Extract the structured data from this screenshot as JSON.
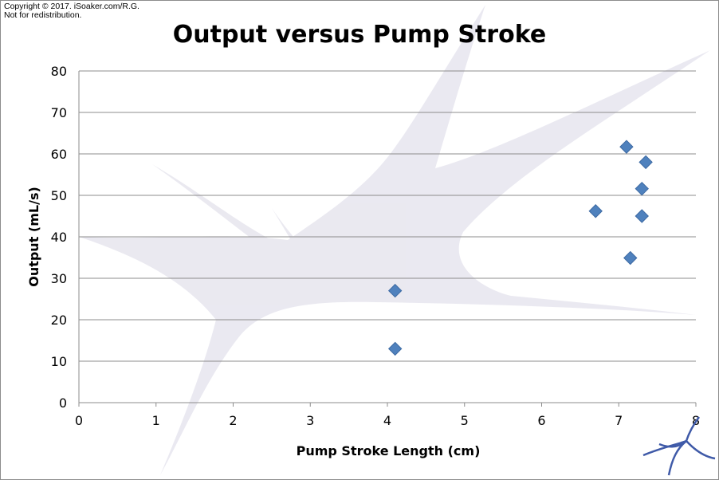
{
  "copyright": {
    "line1": "Copyright © 2017. iSoaker.com/R.G.",
    "line2": "Not for redistribution."
  },
  "watermark_icon": "isoaker-star-logo",
  "chart_data": {
    "type": "scatter",
    "title": "Output versus Pump Stroke",
    "xlabel": "Pump Stroke Length (cm)",
    "ylabel": "Output (mL/s)",
    "xlim": [
      0,
      8
    ],
    "ylim": [
      0,
      80
    ],
    "xticks": [
      0,
      1,
      2,
      3,
      4,
      5,
      6,
      7,
      8
    ],
    "yticks": [
      0,
      10,
      20,
      30,
      40,
      50,
      60,
      70,
      80
    ],
    "grid": "horizontal",
    "legend": "none",
    "marker": "diamond",
    "marker_color": "#4f81bd",
    "points": [
      {
        "x": 4.1,
        "y": 13
      },
      {
        "x": 4.1,
        "y": 27
      },
      {
        "x": 6.7,
        "y": 46.2
      },
      {
        "x": 7.1,
        "y": 61.7
      },
      {
        "x": 7.15,
        "y": 34.9
      },
      {
        "x": 7.3,
        "y": 45
      },
      {
        "x": 7.3,
        "y": 51.6
      },
      {
        "x": 7.35,
        "y": 58
      }
    ]
  }
}
